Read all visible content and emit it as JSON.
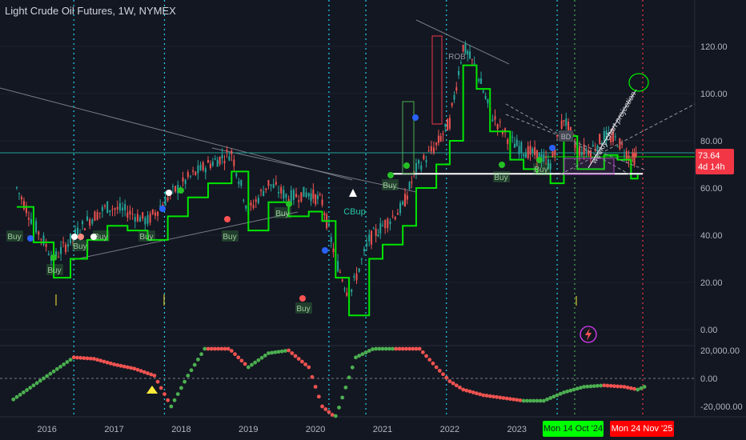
{
  "header": {
    "title": "Light Crude Oil Futures, 1W, NYMEX"
  },
  "price_axis": {
    "ticks": [
      "120.00",
      "100.00",
      "80.00",
      "60.00",
      "40.00",
      "20.00",
      "0.00"
    ],
    "values": [
      120,
      100,
      80,
      60,
      40,
      20,
      0
    ]
  },
  "osc_axis": {
    "ticks": [
      "20,000.00",
      "0.00",
      "-20,000.00"
    ],
    "values": [
      20000,
      0,
      -20000
    ]
  },
  "last_price": {
    "value": "73.64",
    "countdown": "4d 14h",
    "color": "#f23645"
  },
  "time_axis": {
    "labels": [
      "2016",
      "2017",
      "2018",
      "2019",
      "2020",
      "2021",
      "2022",
      "2023",
      "2024"
    ]
  },
  "date_badges": [
    {
      "text": "Mon 14 Oct '24",
      "bg": "#00ff00",
      "fg": "#131722"
    },
    {
      "text": "Mon 24 Nov '25",
      "bg": "#ff0000",
      "fg": "#ffffff"
    }
  ],
  "annotations": {
    "buy_label": "Buy",
    "cbup_label": "CBup",
    "rob_label": "ROB",
    "bd_label": "BD",
    "projection_text": "weekly chart projection"
  },
  "colors": {
    "bg": "#131722",
    "grid": "#2a2e39",
    "up": "#26a69a",
    "down": "#ef5350",
    "trail_green": "#00e600",
    "trail_red": "#ff2b2b",
    "cyan": "#22d3ee",
    "green_vline": "#4caf50",
    "red_vline": "#f23645",
    "support": "#ffffff"
  },
  "chart_data": {
    "type": "line",
    "title": "Light Crude Oil Futures, 1W, NYMEX",
    "x_unit": "year",
    "ylim": [
      -5,
      130
    ],
    "series": [
      {
        "name": "",
        "x": [
          2015.55,
          2015.8,
          2016.1,
          2016.35,
          2016.6,
          2016.9,
          2017.2,
          2017.5,
          2017.8,
          2018.1,
          2018.4,
          2018.75,
          2019.0,
          2019.3,
          2019.6,
          2019.9,
          2020.1,
          2020.3,
          2020.5,
          2020.8,
          2021.0,
          2021.3,
          2021.5,
          2021.8,
          2022.0,
          2022.2,
          2022.4,
          2022.6,
          2022.9,
          2023.1,
          2023.3,
          2023.5,
          2023.7,
          2023.9,
          2024.1,
          2024.3,
          2024.5,
          2024.7,
          2024.8
        ],
        "y": [
          60,
          45,
          30,
          38,
          46,
          52,
          50,
          46,
          56,
          64,
          70,
          75,
          50,
          62,
          56,
          58,
          54,
          30,
          14,
          38,
          44,
          52,
          68,
          78,
          88,
          120,
          110,
          92,
          80,
          76,
          74,
          70,
          90,
          76,
          76,
          82,
          80,
          72,
          73.64
        ]
      }
    ],
    "oscillator": {
      "x": [
        2015.5,
        2015.8,
        2016.1,
        2016.4,
        2016.7,
        2017.0,
        2017.3,
        2017.6,
        2017.85,
        2018.1,
        2018.4,
        2018.7,
        2019.0,
        2019.3,
        2019.6,
        2019.9,
        2020.1,
        2020.3,
        2020.6,
        2020.9,
        2021.2,
        2021.5,
        2021.8,
        2022.0,
        2022.2,
        2022.5,
        2022.8,
        2023.1,
        2023.4,
        2023.7,
        2024.0,
        2024.3,
        2024.6,
        2024.8,
        2024.95
      ],
      "y": [
        -15000,
        -5000,
        5000,
        15000,
        14000,
        10000,
        7000,
        2000,
        -20000,
        2000,
        25000,
        22000,
        8000,
        18000,
        20000,
        8000,
        -20000,
        -28000,
        15000,
        22000,
        25000,
        24000,
        8000,
        -2000,
        -8000,
        -12000,
        -14000,
        -16000,
        -16000,
        -10000,
        -6000,
        -5000,
        -6000,
        -8000,
        -5000
      ]
    },
    "support_level": 66,
    "cycle_lines_x": [
      2016.4,
      2017.75,
      2020.2,
      2020.75,
      2021.95,
      2023.6
    ],
    "projection_target": 105,
    "buy_signals_x": [
      2015.4,
      2016.0,
      2016.4,
      2016.6,
      2017.7,
      2018.75,
      2020.25,
      2021.6,
      2023.6,
      2024.1
    ],
    "x_ticks": [
      "2016",
      "2017",
      "2018",
      "2019",
      "2020",
      "2021",
      "2022",
      "2023",
      "2024"
    ]
  }
}
